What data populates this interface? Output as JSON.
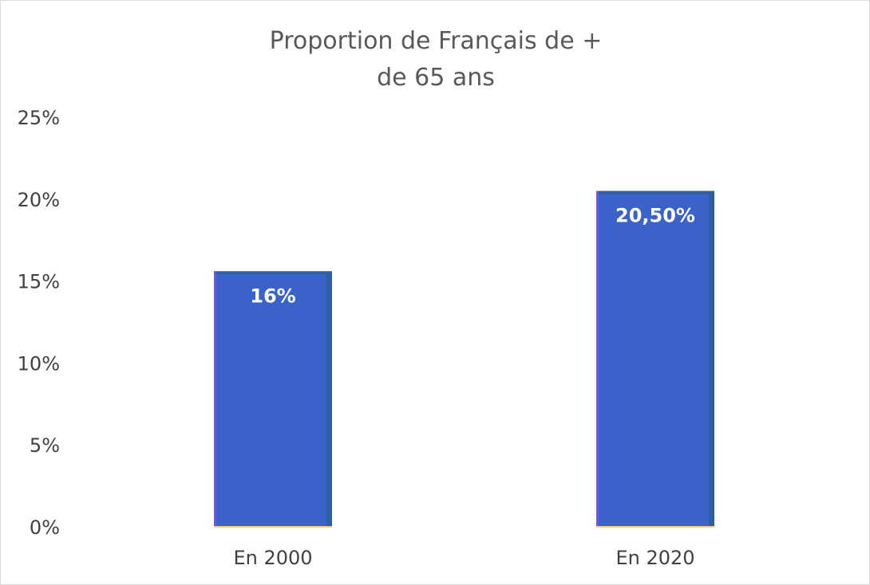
{
  "chart_data": {
    "type": "bar",
    "title_lines": [
      "Proportion de Français de +",
      "de 65 ans"
    ],
    "xlabel": "",
    "ylabel": "",
    "categories": [
      "En 2000",
      "En 2020"
    ],
    "values": [
      15.6,
      20.5
    ],
    "data_labels": [
      "16%",
      "20,50%"
    ],
    "ylim": [
      0,
      25
    ],
    "y_ticks": [
      0,
      5,
      10,
      15,
      20,
      25
    ],
    "y_tick_labels": [
      "0%",
      "5%",
      "10%",
      "15%",
      "20%",
      "25%"
    ],
    "grid": false,
    "legend": "none",
    "bar_color": "#3A62C9",
    "bar_edge_color": "#2E5FA6",
    "bar_left_edge_color": "#6A5AE0",
    "baseline_color": "#F2D27A"
  }
}
